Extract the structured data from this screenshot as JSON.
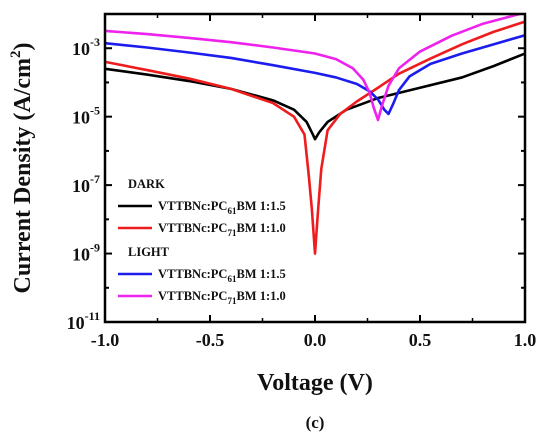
{
  "chart_data": {
    "type": "line",
    "xlabel": "Voltage (V)",
    "ylabel": "Current Density (A/cm²)",
    "yscale": "log",
    "xlim": [
      -1.0,
      1.0
    ],
    "ylim": [
      1e-11,
      0.01
    ],
    "x_ticks": [
      "-1.0",
      "-0.5",
      "0.0",
      "0.5",
      "1.0"
    ],
    "y_ticks": [
      {
        "base": "10",
        "exp": "-3",
        "value": 0.001
      },
      {
        "base": "10",
        "exp": "-5",
        "value": 1e-05
      },
      {
        "base": "10",
        "exp": "-7",
        "value": 1e-07
      },
      {
        "base": "10",
        "exp": "-9",
        "value": 1e-09
      },
      {
        "base": "10",
        "exp": "-11",
        "value": 1e-11
      }
    ],
    "caption": "(c)",
    "legend_groups": [
      {
        "heading": "DARK",
        "series_idx": [
          0,
          1
        ]
      },
      {
        "heading": "LIGHT",
        "series_idx": [
          2,
          3
        ]
      }
    ],
    "series": [
      {
        "name": "VTTBNc:PC61BM 1:1.5",
        "label_parts": {
          "pre": "VTTBNc:PC",
          "sub": "61",
          "post": "BM 1:1.5"
        },
        "color": "#000000",
        "points": [
          [
            -1.0,
            0.00025
          ],
          [
            -0.8,
            0.00017
          ],
          [
            -0.6,
            0.00011
          ],
          [
            -0.4,
            6.5e-05
          ],
          [
            -0.2,
            3e-05
          ],
          [
            -0.1,
            1.6e-05
          ],
          [
            -0.04,
            7e-06
          ],
          [
            -0.01,
            3e-06
          ],
          [
            0.0,
            2.2e-06
          ],
          [
            0.02,
            3.5e-06
          ],
          [
            0.06,
            7e-06
          ],
          [
            0.15,
            1.6e-05
          ],
          [
            0.3,
            3.5e-05
          ],
          [
            0.5,
            7e-05
          ],
          [
            0.7,
            0.00014
          ],
          [
            0.85,
            0.0003
          ],
          [
            1.0,
            0.0007
          ]
        ]
      },
      {
        "name": "VTTBNc:PC71BM 1:1.0",
        "label_parts": {
          "pre": "VTTBNc:PC",
          "sub": "71",
          "post": "BM 1:1.0"
        },
        "color": "#ee1c1c",
        "points": [
          [
            -1.0,
            0.0004
          ],
          [
            -0.8,
            0.00023
          ],
          [
            -0.6,
            0.00013
          ],
          [
            -0.4,
            6.5e-05
          ],
          [
            -0.2,
            2.5e-05
          ],
          [
            -0.1,
            1e-05
          ],
          [
            -0.05,
            3e-06
          ],
          [
            -0.03,
            2e-07
          ],
          [
            -0.015,
            2e-08
          ],
          [
            0.0,
            1e-09
          ],
          [
            0.015,
            2e-08
          ],
          [
            0.03,
            3e-07
          ],
          [
            0.06,
            4e-06
          ],
          [
            0.12,
            1.2e-05
          ],
          [
            0.2,
            2.8e-05
          ],
          [
            0.3,
            7e-05
          ],
          [
            0.4,
            0.00018
          ],
          [
            0.55,
            0.0005
          ],
          [
            0.7,
            0.0013
          ],
          [
            0.85,
            0.003
          ],
          [
            1.0,
            0.006
          ]
        ]
      },
      {
        "name": "VTTBNc:PC61BM 1:1.5",
        "label_parts": {
          "pre": "VTTBNc:PC",
          "sub": "61",
          "post": "BM 1:1.5"
        },
        "color": "#1c1cee",
        "points": [
          [
            -1.0,
            0.0014
          ],
          [
            -0.8,
            0.00105
          ],
          [
            -0.6,
            0.00075
          ],
          [
            -0.4,
            0.00052
          ],
          [
            -0.2,
            0.00032
          ],
          [
            0.0,
            0.00019
          ],
          [
            0.1,
            0.00014
          ],
          [
            0.2,
            9e-05
          ],
          [
            0.26,
            5.5e-05
          ],
          [
            0.3,
            3.2e-05
          ],
          [
            0.33,
            1.6e-05
          ],
          [
            0.35,
            1.2e-05
          ],
          [
            0.37,
            2.2e-05
          ],
          [
            0.4,
            6e-05
          ],
          [
            0.45,
            0.00015
          ],
          [
            0.55,
            0.00035
          ],
          [
            0.7,
            0.0007
          ],
          [
            0.85,
            0.0013
          ],
          [
            1.0,
            0.0024
          ]
        ]
      },
      {
        "name": "VTTBNc:PC71BM 1:1.0",
        "label_parts": {
          "pre": "VTTBNc:PC",
          "sub": "71",
          "post": "BM 1:1.0"
        },
        "color": "#ee22ee",
        "points": [
          [
            -1.0,
            0.0032
          ],
          [
            -0.8,
            0.0026
          ],
          [
            -0.6,
            0.002
          ],
          [
            -0.4,
            0.0015
          ],
          [
            -0.2,
            0.00105
          ],
          [
            0.0,
            0.0007
          ],
          [
            0.1,
            0.00048
          ],
          [
            0.18,
            0.00026
          ],
          [
            0.23,
            0.00012
          ],
          [
            0.26,
            5e-05
          ],
          [
            0.28,
            1.8e-05
          ],
          [
            0.3,
            8e-06
          ],
          [
            0.32,
            2.2e-05
          ],
          [
            0.35,
            8e-05
          ],
          [
            0.4,
            0.00026
          ],
          [
            0.5,
            0.0008
          ],
          [
            0.65,
            0.0023
          ],
          [
            0.8,
            0.0052
          ],
          [
            1.0,
            0.011
          ]
        ]
      }
    ]
  }
}
